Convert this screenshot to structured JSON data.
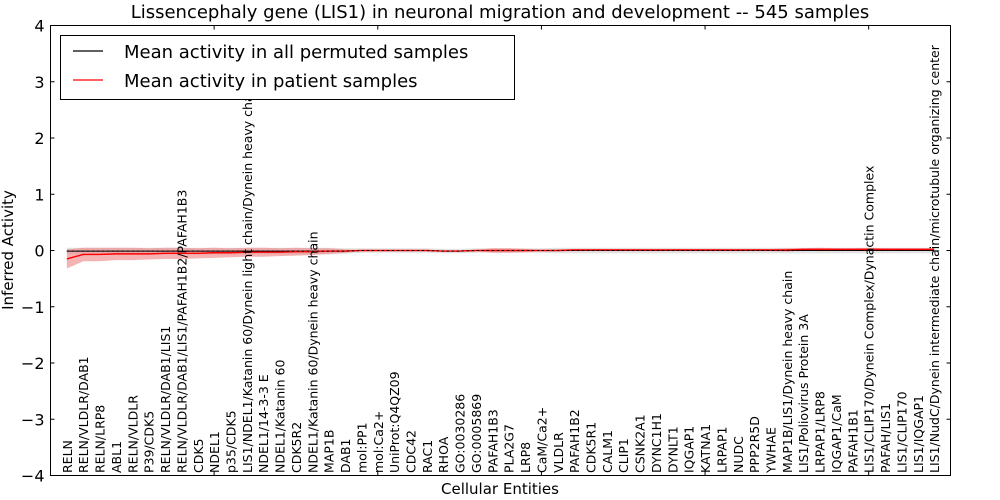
{
  "chart_data": {
    "type": "line",
    "title": "Lissencephaly gene (LIS1) in neuronal migration and development -- 545 samples",
    "xlabel": "Cellular Entities",
    "ylabel": "Inferred Activity",
    "xlim": [
      0,
      55
    ],
    "ylim": [
      -4,
      4
    ],
    "yticks": [
      4,
      3,
      2,
      1,
      0,
      -1,
      -2,
      -3,
      -4
    ],
    "ytick_labels": [
      "4",
      "3",
      "2",
      "1",
      "0",
      "−1",
      "−2",
      "−3",
      "−4"
    ],
    "xticks": [
      10,
      20,
      30,
      40,
      50
    ],
    "legend_placement": "top-left",
    "categories": [
      "RELN",
      "RELN/VLDLR/DAB1",
      "RELN/LRP8",
      "ABL1",
      "RELN/VLDLR",
      "P39/CDK5",
      "RELN/VLDLR/DAB1/LIS1",
      "RELN/VLDLR/DAB1/LIS1/PAFAH1B2/PAFAH1B3",
      "CDK5",
      "NDEL1",
      "p35/CDK5",
      "LIS1/NDEL1/Katanin 60/Dynein light chain/Dynein heavy chain",
      "NDEL1/14-3-3 E",
      "NDEL1/Katanin 60",
      "CDK5R2",
      "NDEL1/Katanin 60/Dynein heavy chain",
      "MAP1B",
      "DAB1",
      "mol:PP1",
      "mol:Ca2+",
      "UniProt:Q4QZ09",
      "CDC42",
      "RAC1",
      "RHOA",
      "GO:0030286",
      "GO:0005869",
      "PAFAH1B3",
      "PLA2G7",
      "LRP8",
      "CaM/Ca2+",
      "VLDLR",
      "PAFAH1B2",
      "CDK5R1",
      "CALM1",
      "CLIP1",
      "CSNK2A1",
      "DYNC1H1",
      "DYNLT1",
      "IQGAP1",
      "KATNA1",
      "LRPAP1",
      "NUDC",
      "PPP2R5D",
      "YWHAE",
      "MAP1B/LIS1/Dynein heavy chain",
      "LIS1/Poliovirus Protein 3A",
      "LRPAP1/LRP8",
      "IQGAP1/CaM",
      "PAFAH1B1",
      "LIS1/CLIP170/Dynein Complex/Dynactin Complex",
      "PAFAH/LIS1",
      "LIS1/CLIP170",
      "LIS1/IQGAP1",
      "LIS1/NudC/Dynein intermediate chain/microtubule organizing center"
    ],
    "series": [
      {
        "name": "Mean activity in all permuted samples",
        "color": "#000000",
        "band_color": "#cccccc",
        "values": [
          -0.01,
          -0.01,
          -0.01,
          -0.01,
          -0.01,
          -0.01,
          -0.01,
          -0.01,
          -0.01,
          -0.01,
          -0.01,
          -0.01,
          -0.01,
          -0.01,
          -0.01,
          -0.01,
          -0.01,
          -0.01,
          0,
          0,
          0,
          0,
          0,
          -0.01,
          -0.01,
          0,
          0,
          0,
          0,
          0,
          0,
          0,
          0,
          0,
          0,
          0,
          0,
          0,
          0,
          0,
          0,
          0,
          0,
          0,
          0,
          0,
          0,
          0,
          0,
          0,
          0,
          0,
          0,
          0
        ],
        "band": [
          0.06,
          0.06,
          0.06,
          0.06,
          0.06,
          0.06,
          0.06,
          0.06,
          0.06,
          0.06,
          0.06,
          0.06,
          0.06,
          0.06,
          0.06,
          0.06,
          0.06,
          0.05,
          0.04,
          0.04,
          0.04,
          0.04,
          0.04,
          0.04,
          0.04,
          0.04,
          0.04,
          0.04,
          0.04,
          0.04,
          0.05,
          0.05,
          0.05,
          0.05,
          0.05,
          0.05,
          0.05,
          0.05,
          0.05,
          0.05,
          0.05,
          0.05,
          0.05,
          0.05,
          0.05,
          0.05,
          0.05,
          0.05,
          0.05,
          0.05,
          0.05,
          0.05,
          0.05,
          0.05
        ]
      },
      {
        "name": "Mean activity in patient samples",
        "color": "#ff0000",
        "band_color": "#f08080",
        "values": [
          -0.15,
          -0.07,
          -0.07,
          -0.06,
          -0.06,
          -0.06,
          -0.05,
          -0.05,
          -0.05,
          -0.04,
          -0.04,
          -0.03,
          -0.03,
          -0.03,
          -0.02,
          -0.02,
          -0.01,
          -0.01,
          0,
          0,
          0,
          0,
          0,
          -0.01,
          -0.01,
          0,
          0,
          0,
          0,
          0,
          0,
          0.01,
          0.01,
          0.01,
          0.01,
          0.01,
          0.01,
          0.01,
          0.01,
          0.01,
          0.01,
          0.01,
          0.01,
          0.01,
          0.01,
          0.02,
          0.02,
          0.02,
          0.02,
          0.02,
          0.02,
          0.02,
          0.02,
          0.02
        ],
        "band": [
          0.17,
          0.12,
          0.12,
          0.11,
          0.11,
          0.1,
          0.1,
          0.1,
          0.09,
          0.09,
          0.08,
          0.08,
          0.08,
          0.07,
          0.07,
          0.06,
          0.05,
          0.03,
          0.01,
          0.01,
          0.01,
          0.01,
          0.01,
          0.01,
          0.01,
          0.01,
          0.04,
          0.04,
          0.03,
          0.01,
          0.02,
          0.02,
          0.02,
          0.02,
          0.02,
          0.02,
          0.02,
          0.02,
          0.02,
          0.02,
          0.02,
          0.02,
          0.02,
          0.02,
          0.03,
          0.02,
          0.03,
          0.02,
          0.02,
          0.03,
          0.02,
          0.02,
          0.02,
          0.02
        ]
      }
    ]
  }
}
